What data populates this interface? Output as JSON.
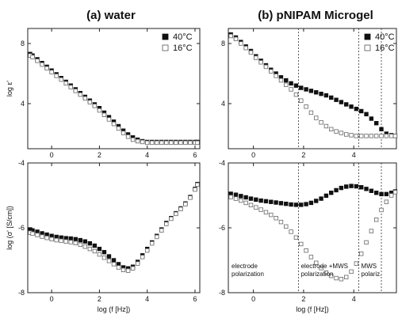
{
  "chart_data": [
    {
      "type": "scatter",
      "title": "(a) water",
      "xlabel": "",
      "ylabel": "log ε'",
      "xlim": [
        -1,
        6.2
      ],
      "ylim": [
        1,
        9
      ],
      "xticks": [
        "0",
        "2",
        "4",
        "6"
      ],
      "yticks": [
        "4",
        "8"
      ],
      "legend": "top-right",
      "series": [
        {
          "name": "40°C",
          "marker": "filled-square",
          "x": [
            -0.9,
            -0.8,
            -0.6,
            -0.4,
            -0.2,
            0.0,
            0.2,
            0.4,
            0.6,
            0.8,
            1.0,
            1.2,
            1.4,
            1.6,
            1.8,
            2.0,
            2.2,
            2.4,
            2.6,
            2.8,
            3.0,
            3.2,
            3.4,
            3.6,
            3.8,
            4.0,
            4.2,
            4.4,
            4.6,
            4.8,
            5.0,
            5.2,
            5.4,
            5.6,
            5.8,
            6.0,
            6.1
          ],
          "y": [
            7.3,
            7.2,
            6.95,
            6.7,
            6.45,
            6.2,
            5.95,
            5.7,
            5.45,
            5.2,
            4.95,
            4.7,
            4.45,
            4.2,
            3.95,
            3.7,
            3.4,
            3.1,
            2.8,
            2.5,
            2.2,
            1.95,
            1.75,
            1.6,
            1.5,
            1.45,
            1.45,
            1.45,
            1.45,
            1.45,
            1.45,
            1.45,
            1.45,
            1.45,
            1.45,
            1.45,
            1.45
          ]
        },
        {
          "name": "16°C",
          "marker": "open-square",
          "x": [
            -0.9,
            -0.8,
            -0.6,
            -0.4,
            -0.2,
            0.0,
            0.2,
            0.4,
            0.6,
            0.8,
            1.0,
            1.2,
            1.4,
            1.6,
            1.8,
            2.0,
            2.2,
            2.4,
            2.6,
            2.8,
            3.0,
            3.2,
            3.4,
            3.6,
            3.8,
            4.0,
            4.2,
            4.4,
            4.6,
            4.8,
            5.0,
            5.2,
            5.4,
            5.6,
            5.8,
            6.0,
            6.1
          ],
          "y": [
            7.2,
            7.1,
            6.85,
            6.6,
            6.35,
            6.1,
            5.85,
            5.6,
            5.35,
            5.1,
            4.85,
            4.6,
            4.35,
            4.1,
            3.85,
            3.55,
            3.25,
            2.95,
            2.65,
            2.35,
            2.05,
            1.8,
            1.6,
            1.5,
            1.45,
            1.4,
            1.4,
            1.4,
            1.4,
            1.4,
            1.4,
            1.4,
            1.4,
            1.4,
            1.4,
            1.4,
            1.4
          ]
        }
      ]
    },
    {
      "type": "scatter",
      "title": "(b) pNIPAM Microgel",
      "xlabel": "",
      "ylabel": "",
      "xlim": [
        -1,
        5.7
      ],
      "ylim": [
        1,
        9
      ],
      "xticks": [
        "0",
        "2",
        "4"
      ],
      "yticks": [
        "4",
        "8"
      ],
      "legend": "top-right",
      "vlines": [
        1.8,
        4.2,
        5.1
      ],
      "series": [
        {
          "name": "40°C",
          "marker": "filled-square",
          "x": [
            -0.9,
            -0.7,
            -0.5,
            -0.3,
            -0.1,
            0.1,
            0.3,
            0.5,
            0.7,
            0.9,
            1.1,
            1.3,
            1.5,
            1.7,
            1.9,
            2.1,
            2.3,
            2.5,
            2.7,
            2.9,
            3.1,
            3.3,
            3.5,
            3.7,
            3.9,
            4.1,
            4.3,
            4.5,
            4.7,
            4.9,
            5.1,
            5.3,
            5.5,
            5.65
          ],
          "y": [
            8.6,
            8.4,
            8.1,
            7.8,
            7.5,
            7.15,
            6.85,
            6.55,
            6.25,
            6.0,
            5.75,
            5.55,
            5.35,
            5.2,
            5.05,
            4.95,
            4.85,
            4.75,
            4.65,
            4.55,
            4.4,
            4.25,
            4.1,
            3.95,
            3.8,
            3.65,
            3.5,
            3.3,
            3.0,
            2.7,
            2.3,
            2.0,
            1.9,
            1.85
          ]
        },
        {
          "name": "16°C",
          "marker": "open-square",
          "x": [
            -0.9,
            -0.7,
            -0.5,
            -0.3,
            -0.1,
            0.1,
            0.3,
            0.5,
            0.7,
            0.9,
            1.1,
            1.3,
            1.5,
            1.7,
            1.9,
            2.1,
            2.3,
            2.5,
            2.7,
            2.9,
            3.1,
            3.3,
            3.5,
            3.7,
            3.9,
            4.1,
            4.3,
            4.5,
            4.7,
            4.9,
            5.1,
            5.3,
            5.5,
            5.65
          ],
          "y": [
            8.5,
            8.3,
            8.0,
            7.7,
            7.4,
            7.05,
            6.75,
            6.45,
            6.15,
            5.85,
            5.55,
            5.25,
            4.95,
            4.6,
            4.2,
            3.8,
            3.4,
            3.05,
            2.75,
            2.5,
            2.3,
            2.15,
            2.05,
            1.95,
            1.9,
            1.85,
            1.85,
            1.85,
            1.85,
            1.85,
            1.85,
            1.85,
            1.85,
            1.85
          ]
        }
      ],
      "legend_labels": [
        "40°C",
        "16°C"
      ]
    },
    {
      "type": "scatter",
      "title": "",
      "xlabel": "log (f [Hz])",
      "ylabel": "log (σ' [S/cm])",
      "xlim": [
        -1,
        6.2
      ],
      "ylim": [
        -8,
        -4
      ],
      "xticks": [
        "0",
        "2",
        "4",
        "6"
      ],
      "yticks": [
        "-8",
        "-6",
        "-4"
      ],
      "series": [
        {
          "name": "40°C",
          "marker": "filled-square",
          "x": [
            -0.9,
            -0.8,
            -0.6,
            -0.4,
            -0.2,
            0.0,
            0.2,
            0.4,
            0.6,
            0.8,
            1.0,
            1.2,
            1.4,
            1.6,
            1.8,
            2.0,
            2.2,
            2.4,
            2.6,
            2.8,
            3.0,
            3.2,
            3.4,
            3.6,
            3.8,
            4.0,
            4.2,
            4.4,
            4.6,
            4.8,
            5.0,
            5.2,
            5.4,
            5.6,
            5.8,
            6.0,
            6.1
          ],
          "y": [
            -6.05,
            -6.08,
            -6.12,
            -6.17,
            -6.21,
            -6.25,
            -6.28,
            -6.3,
            -6.32,
            -6.33,
            -6.35,
            -6.38,
            -6.42,
            -6.48,
            -6.55,
            -6.65,
            -6.75,
            -6.88,
            -7.0,
            -7.12,
            -7.22,
            -7.25,
            -7.2,
            -7.05,
            -6.85,
            -6.65,
            -6.45,
            -6.25,
            -6.05,
            -5.85,
            -5.7,
            -5.55,
            -5.4,
            -5.25,
            -5.05,
            -4.8,
            -4.65
          ]
        },
        {
          "name": "16°C",
          "marker": "open-square",
          "x": [
            -0.9,
            -0.8,
            -0.6,
            -0.4,
            -0.2,
            0.0,
            0.2,
            0.4,
            0.6,
            0.8,
            1.0,
            1.2,
            1.4,
            1.6,
            1.8,
            2.0,
            2.2,
            2.4,
            2.6,
            2.8,
            3.0,
            3.2,
            3.4,
            3.6,
            3.8,
            4.0,
            4.2,
            4.4,
            4.6,
            4.8,
            5.0,
            5.2,
            5.4,
            5.6,
            5.8,
            6.0,
            6.1
          ],
          "y": [
            -6.15,
            -6.18,
            -6.22,
            -6.27,
            -6.31,
            -6.35,
            -6.38,
            -6.4,
            -6.42,
            -6.44,
            -6.47,
            -6.52,
            -6.58,
            -6.65,
            -6.72,
            -6.82,
            -6.92,
            -7.02,
            -7.12,
            -7.22,
            -7.3,
            -7.32,
            -7.25,
            -7.1,
            -6.9,
            -6.7,
            -6.48,
            -6.28,
            -6.08,
            -5.88,
            -5.72,
            -5.57,
            -5.42,
            -5.27,
            -5.07,
            -4.82,
            -4.67
          ]
        }
      ]
    },
    {
      "type": "scatter",
      "title": "",
      "xlabel": "log (f [Hz])",
      "ylabel": "",
      "xlim": [
        -1,
        5.7
      ],
      "ylim": [
        -8,
        -4
      ],
      "xticks": [
        "0",
        "2",
        "4"
      ],
      "yticks": [
        "-8",
        "-6",
        "-4"
      ],
      "vlines": [
        1.8,
        4.2,
        5.1
      ],
      "annotations": [
        "electrode polarization",
        "electrode +MWS polarization",
        "MWS polariz."
      ],
      "series": [
        {
          "name": "40°C",
          "marker": "filled-square",
          "x": [
            -0.9,
            -0.7,
            -0.5,
            -0.3,
            -0.1,
            0.1,
            0.3,
            0.5,
            0.7,
            0.9,
            1.1,
            1.3,
            1.5,
            1.7,
            1.9,
            2.1,
            2.3,
            2.5,
            2.7,
            2.9,
            3.1,
            3.3,
            3.5,
            3.7,
            3.9,
            4.1,
            4.3,
            4.5,
            4.7,
            4.9,
            5.1,
            5.3,
            5.5,
            5.65
          ],
          "y": [
            -4.95,
            -4.98,
            -5.02,
            -5.06,
            -5.1,
            -5.13,
            -5.16,
            -5.18,
            -5.2,
            -5.22,
            -5.24,
            -5.26,
            -5.28,
            -5.29,
            -5.29,
            -5.27,
            -5.23,
            -5.17,
            -5.1,
            -5.01,
            -4.92,
            -4.84,
            -4.77,
            -4.73,
            -4.71,
            -4.72,
            -4.75,
            -4.8,
            -4.86,
            -4.92,
            -4.96,
            -4.96,
            -4.92,
            -4.88
          ]
        },
        {
          "name": "16°C",
          "marker": "open-square",
          "x": [
            -0.9,
            -0.7,
            -0.5,
            -0.3,
            -0.1,
            0.1,
            0.3,
            0.5,
            0.7,
            0.9,
            1.1,
            1.3,
            1.5,
            1.7,
            1.9,
            2.1,
            2.3,
            2.5,
            2.7,
            2.9,
            3.1,
            3.3,
            3.5,
            3.7,
            3.9,
            4.1,
            4.3,
            4.5,
            4.7,
            4.9,
            5.1,
            5.3,
            5.5,
            5.65
          ],
          "y": [
            -5.05,
            -5.1,
            -5.16,
            -5.23,
            -5.3,
            -5.37,
            -5.44,
            -5.52,
            -5.6,
            -5.7,
            -5.82,
            -5.96,
            -6.12,
            -6.3,
            -6.5,
            -6.7,
            -6.9,
            -7.08,
            -7.24,
            -7.38,
            -7.48,
            -7.55,
            -7.58,
            -7.52,
            -7.35,
            -7.1,
            -6.8,
            -6.45,
            -6.1,
            -5.75,
            -5.45,
            -5.2,
            -5.0,
            -4.9
          ]
        }
      ]
    }
  ]
}
